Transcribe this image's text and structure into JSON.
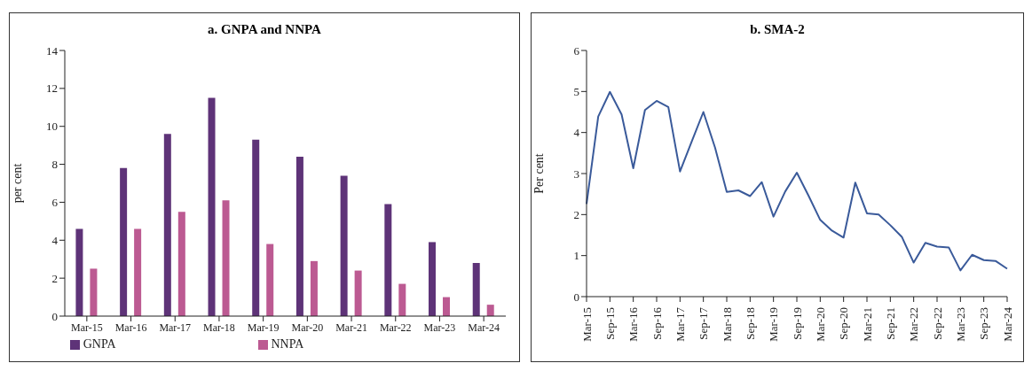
{
  "chart_data": [
    {
      "type": "bar",
      "title": "a. GNPA and NNPA",
      "ylabel": "per cent",
      "categories": [
        "Mar-15",
        "Mar-16",
        "Mar-17",
        "Mar-18",
        "Mar-19",
        "Mar-20",
        "Mar-21",
        "Mar-22",
        "Mar-23",
        "Mar-24"
      ],
      "series": [
        {
          "name": "GNPA",
          "color": "#5e3378",
          "values": [
            4.6,
            7.8,
            9.6,
            11.5,
            9.3,
            8.4,
            7.4,
            5.9,
            3.9,
            2.8
          ]
        },
        {
          "name": "NNPA",
          "color": "#bc5a92",
          "values": [
            2.5,
            4.6,
            5.5,
            6.1,
            3.8,
            2.9,
            2.4,
            1.7,
            1.0,
            0.6
          ]
        }
      ],
      "ylim": [
        0,
        14
      ],
      "yticks": [
        0,
        2,
        4,
        6,
        8,
        10,
        12,
        14
      ],
      "grid": false,
      "legend": "bottom"
    },
    {
      "type": "line",
      "title": "b. SMA-2",
      "ylabel": "Per cent",
      "categories": [
        "Mar-15",
        null,
        "Sep-15",
        null,
        "Mar-16",
        null,
        "Sep-16",
        null,
        "Mar-17",
        null,
        "Sep-17",
        null,
        "Mar-18",
        null,
        "Sep-18",
        null,
        "Mar-19",
        null,
        "Sep-19",
        null,
        "Mar-20",
        null,
        "Sep-20",
        null,
        "Mar-21",
        null,
        "Sep-21",
        null,
        "Mar-22",
        null,
        "Sep-22",
        null,
        "Mar-23",
        null,
        "Sep-23",
        null,
        "Mar-24"
      ],
      "series": [
        {
          "color": "#3a5a9a",
          "values": [
            2.26,
            4.39,
            4.99,
            4.44,
            3.13,
            4.55,
            4.77,
            4.62,
            3.05,
            3.78,
            4.5,
            3.63,
            2.55,
            2.59,
            2.45,
            2.79,
            1.95,
            2.56,
            3.02,
            2.46,
            1.87,
            1.61,
            1.44,
            2.78,
            2.03,
            2.0,
            1.74,
            1.45,
            0.83,
            1.31,
            1.22,
            1.2,
            0.64,
            1.02,
            0.89,
            0.87,
            0.68
          ]
        }
      ],
      "ylim": [
        0,
        6
      ],
      "yticks": [
        0,
        1,
        2,
        3,
        4,
        5,
        6
      ],
      "grid": false,
      "legend": false,
      "marker": "none",
      "line_style": "solid"
    }
  ]
}
